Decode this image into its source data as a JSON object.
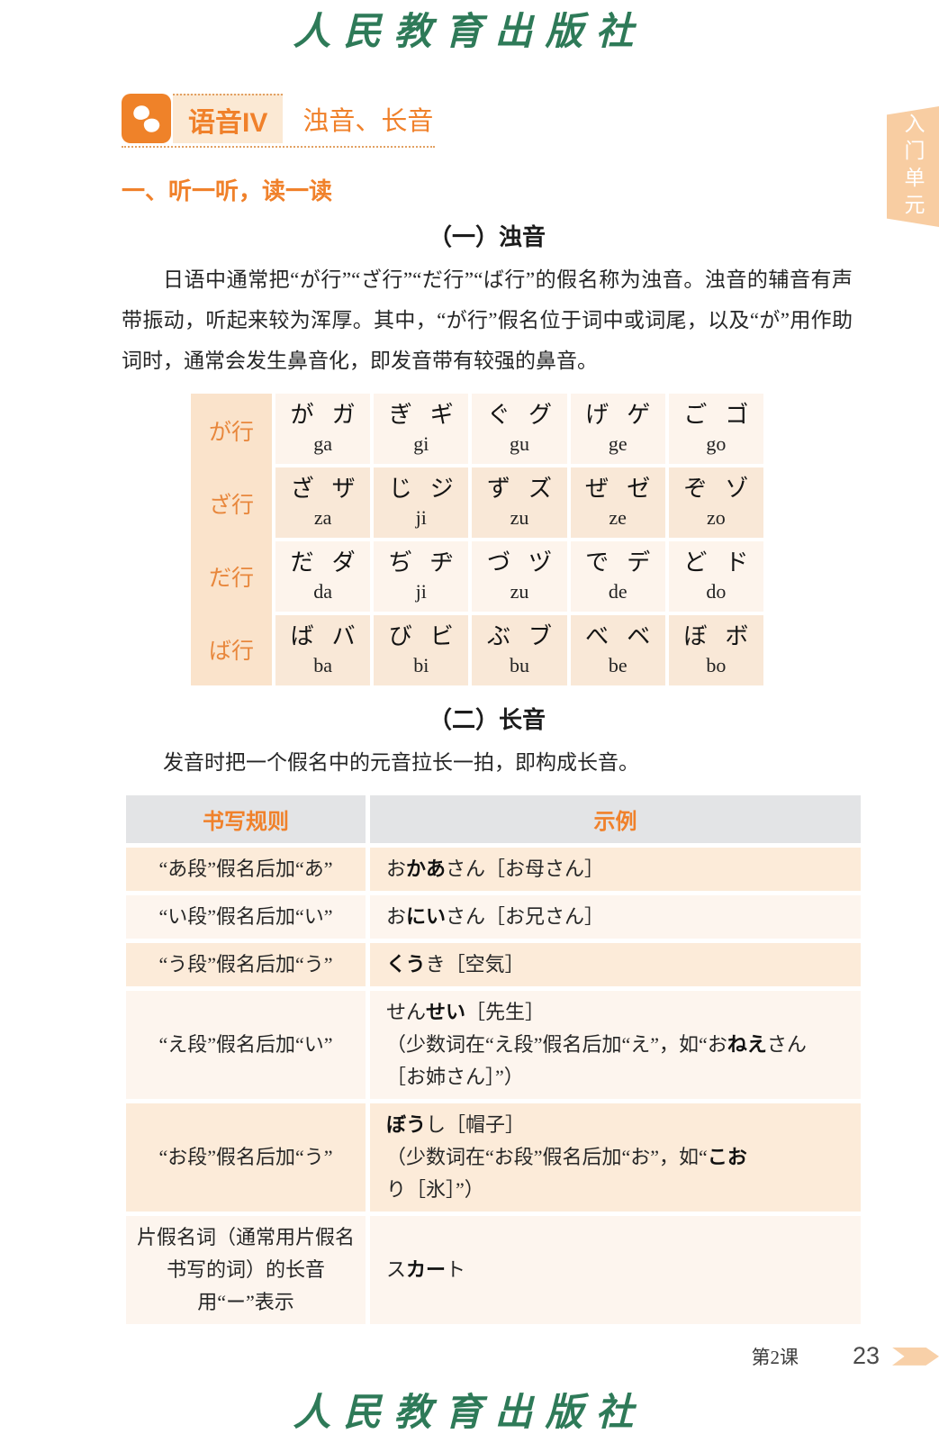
{
  "page": {
    "publisher_logo": "人民教育出版社",
    "side_tab": "入门单元",
    "footer_lesson": "第2课",
    "footer_page": "23"
  },
  "header": {
    "badge": "语音IV",
    "title": "浊音、长音"
  },
  "sections": {
    "listen_heading": "一、听一听，读一读",
    "sub1_heading": "（一）浊音",
    "paragraph1": "日语中通常把“が行”“ざ行”“だ行”“ば行”的假名称为浊音。浊音的辅音有声带振动，听起来较为浑厚。其中，“が行”假名位于词中或词尾，以及“が”用作助词时，通常会发生鼻音化，即发音带有较强的鼻音。",
    "sub2_heading": "（二）长音",
    "paragraph2": "发音时把一个假名中的元音拉长一拍，即构成长音。"
  },
  "kana_table": {
    "rows": [
      {
        "label": "が行",
        "cells": [
          {
            "hira": "が",
            "kata": "ガ",
            "romaji": "ga"
          },
          {
            "hira": "ぎ",
            "kata": "ギ",
            "romaji": "gi"
          },
          {
            "hira": "ぐ",
            "kata": "グ",
            "romaji": "gu"
          },
          {
            "hira": "げ",
            "kata": "ゲ",
            "romaji": "ge"
          },
          {
            "hira": "ご",
            "kata": "ゴ",
            "romaji": "go"
          }
        ]
      },
      {
        "label": "ざ行",
        "cells": [
          {
            "hira": "ざ",
            "kata": "ザ",
            "romaji": "za"
          },
          {
            "hira": "じ",
            "kata": "ジ",
            "romaji": "ji"
          },
          {
            "hira": "ず",
            "kata": "ズ",
            "romaji": "zu"
          },
          {
            "hira": "ぜ",
            "kata": "ゼ",
            "romaji": "ze"
          },
          {
            "hira": "ぞ",
            "kata": "ゾ",
            "romaji": "zo"
          }
        ]
      },
      {
        "label": "だ行",
        "cells": [
          {
            "hira": "だ",
            "kata": "ダ",
            "romaji": "da"
          },
          {
            "hira": "ぢ",
            "kata": "ヂ",
            "romaji": "ji"
          },
          {
            "hira": "づ",
            "kata": "ヅ",
            "romaji": "zu"
          },
          {
            "hira": "で",
            "kata": "デ",
            "romaji": "de"
          },
          {
            "hira": "ど",
            "kata": "ド",
            "romaji": "do"
          }
        ]
      },
      {
        "label": "ば行",
        "cells": [
          {
            "hira": "ば",
            "kata": "バ",
            "romaji": "ba"
          },
          {
            "hira": "び",
            "kata": "ビ",
            "romaji": "bi"
          },
          {
            "hira": "ぶ",
            "kata": "ブ",
            "romaji": "bu"
          },
          {
            "hira": "べ",
            "kata": "ベ",
            "romaji": "be"
          },
          {
            "hira": "ぼ",
            "kata": "ボ",
            "romaji": "bo"
          }
        ]
      }
    ]
  },
  "choon_table": {
    "headers": [
      "书写规则",
      "示例"
    ],
    "rows": [
      {
        "rule": "“あ段”假名后加“あ”",
        "example": [
          [
            {
              "t": "お"
            },
            {
              "t": "かあ",
              "b": true
            },
            {
              "t": "さん［お母さん］"
            }
          ]
        ]
      },
      {
        "rule": "“い段”假名后加“い”",
        "example": [
          [
            {
              "t": "お"
            },
            {
              "t": "にい",
              "b": true
            },
            {
              "t": "さん［お兄さん］"
            }
          ]
        ]
      },
      {
        "rule": "“う段”假名后加“う”",
        "example": [
          [
            {
              "t": "くう",
              "b": true
            },
            {
              "t": "き［空気］"
            }
          ]
        ]
      },
      {
        "rule": "“え段”假名后加“い”",
        "example": [
          [
            {
              "t": "せん"
            },
            {
              "t": "せい",
              "b": true
            },
            {
              "t": "［先生］"
            }
          ],
          [
            {
              "t": "（少数词在“え段”假名后加“え”，如“お"
            },
            {
              "t": "ねえ",
              "b": true
            },
            {
              "t": "さん［お姉さん］”）"
            }
          ]
        ]
      },
      {
        "rule": "“お段”假名后加“う”",
        "example": [
          [
            {
              "t": "ぼう",
              "b": true
            },
            {
              "t": "し［帽子］"
            }
          ],
          [
            {
              "t": "（少数词在“お段”假名后加“お”，如“"
            },
            {
              "t": "こお",
              "b": true
            },
            {
              "t": "り［氷］”）"
            }
          ]
        ]
      },
      {
        "rule": "片假名词（通常用片假名书写的词）的长音用“ー”表示",
        "example": [
          [
            {
              "t": "ス"
            },
            {
              "t": "カー",
              "b": true
            },
            {
              "t": "ト"
            }
          ]
        ]
      }
    ]
  },
  "colors": {
    "accent_orange": "#f0812b",
    "icon_orange": "#ef8229",
    "badge_bg": "#fbe9d4",
    "tab_bg": "#f8cda2",
    "kana_label_bg": "#fae3cb",
    "kana_row_light": "#fdf4ec",
    "kana_row_dark": "#f9e8d7",
    "choon_header_bg": "#e3e4e6",
    "choon_row_peach": "#fcebd9",
    "choon_row_light": "#fdf5ee",
    "logo_green": "#2e7a58",
    "footer_arrow": "#f8d0a8"
  },
  "icons": {
    "fox_icon": "flower-fox-icon",
    "footer_arrow_icon": "page-arrow-icon"
  }
}
